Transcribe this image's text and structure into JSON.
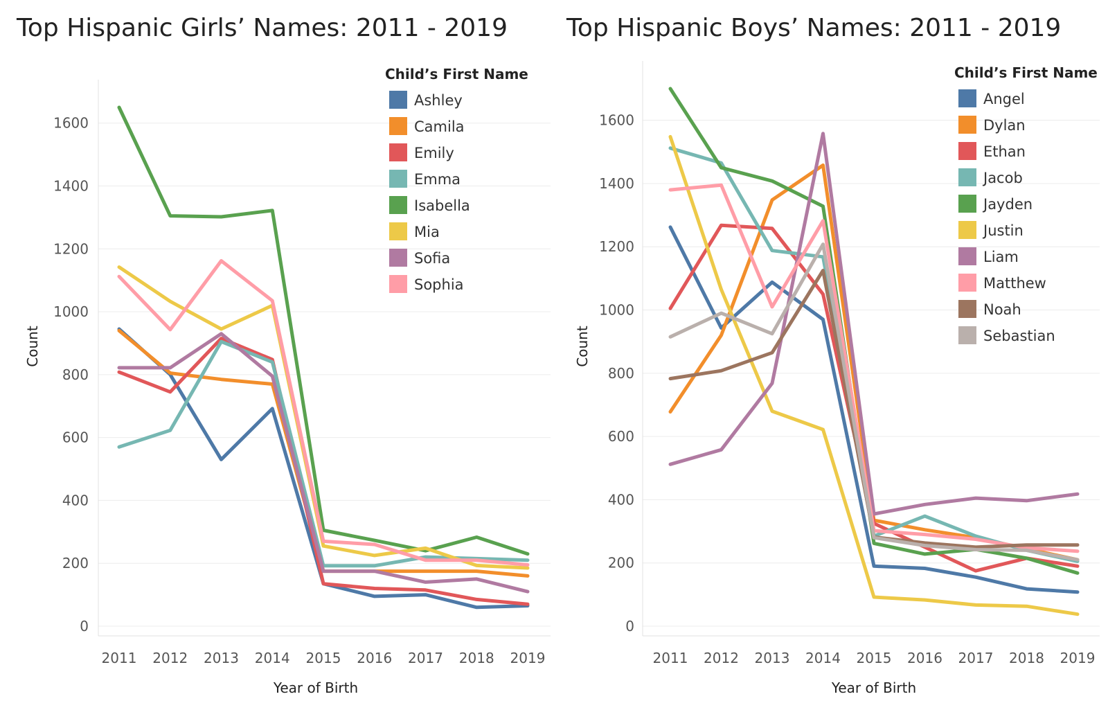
{
  "chart_data": [
    {
      "type": "line",
      "title": "Top Hispanic Girls’ Names: 2011 - 2019",
      "xlabel": "Year of Birth",
      "ylabel": "Count",
      "x": [
        "2011",
        "2012",
        "2013",
        "2014",
        "2015",
        "2016",
        "2017",
        "2018",
        "2019"
      ],
      "yticks": [
        0,
        200,
        400,
        600,
        800,
        1000,
        1200,
        1400,
        1600
      ],
      "ylim": [
        0,
        1650
      ],
      "grid": true,
      "legend_title": "Child’s First Name",
      "legend_position": "top-right",
      "series": [
        {
          "name": "Ashley",
          "color": "#4e79a7",
          "values": [
            945,
            800,
            530,
            692,
            135,
            95,
            100,
            60,
            65
          ]
        },
        {
          "name": "Camila",
          "color": "#f28e2b",
          "values": [
            940,
            805,
            785,
            770,
            175,
            175,
            175,
            175,
            160
          ]
        },
        {
          "name": "Emily",
          "color": "#e15759",
          "values": [
            808,
            745,
            915,
            848,
            135,
            120,
            115,
            85,
            70
          ]
        },
        {
          "name": "Emma",
          "color": "#76b7b2",
          "values": [
            570,
            623,
            905,
            840,
            192,
            192,
            220,
            215,
            210
          ]
        },
        {
          "name": "Isabella",
          "color": "#59a14f",
          "values": [
            1650,
            1305,
            1302,
            1322,
            305,
            273,
            240,
            283,
            230
          ]
        },
        {
          "name": "Mia",
          "color": "#edc948",
          "values": [
            1142,
            1033,
            945,
            1020,
            255,
            225,
            248,
            193,
            185
          ]
        },
        {
          "name": "Sofia",
          "color": "#b07aa1",
          "values": [
            822,
            822,
            930,
            795,
            175,
            175,
            140,
            150,
            110
          ]
        },
        {
          "name": "Sophia",
          "color": "#ff9da7",
          "values": [
            1112,
            943,
            1162,
            1035,
            270,
            260,
            210,
            210,
            195
          ]
        }
      ]
    },
    {
      "type": "line",
      "title": "Top Hispanic Boys’ Names: 2011 - 2019",
      "xlabel": "Year of Birth",
      "ylabel": "Count",
      "x": [
        "2011",
        "2012",
        "2013",
        "2014",
        "2015",
        "2016",
        "2017",
        "2018",
        "2019"
      ],
      "yticks": [
        0,
        200,
        400,
        600,
        800,
        1000,
        1200,
        1400,
        1600
      ],
      "ylim": [
        0,
        1700
      ],
      "grid": true,
      "legend_title": "Child’s First Name",
      "legend_position": "top-right",
      "series": [
        {
          "name": "Angel",
          "color": "#4e79a7",
          "values": [
            1262,
            943,
            1088,
            970,
            190,
            183,
            155,
            118,
            108
          ]
        },
        {
          "name": "Dylan",
          "color": "#f28e2b",
          "values": [
            678,
            920,
            1348,
            1458,
            335,
            305,
            280,
            245,
            210
          ]
        },
        {
          "name": "Ethan",
          "color": "#e15759",
          "values": [
            1005,
            1268,
            1258,
            1050,
            325,
            250,
            175,
            215,
            190
          ]
        },
        {
          "name": "Jacob",
          "color": "#76b7b2",
          "values": [
            1512,
            1465,
            1188,
            1168,
            285,
            348,
            285,
            240,
            205
          ]
        },
        {
          "name": "Jayden",
          "color": "#59a14f",
          "values": [
            1700,
            1450,
            1408,
            1328,
            262,
            228,
            243,
            215,
            168
          ]
        },
        {
          "name": "Justin",
          "color": "#edc948",
          "values": [
            1548,
            1065,
            680,
            622,
            92,
            83,
            67,
            63,
            38
          ]
        },
        {
          "name": "Liam",
          "color": "#b07aa1",
          "values": [
            512,
            558,
            768,
            1558,
            355,
            385,
            405,
            397,
            418
          ]
        },
        {
          "name": "Matthew",
          "color": "#ff9da7",
          "values": [
            1380,
            1395,
            1010,
            1282,
            302,
            290,
            275,
            248,
            237
          ]
        },
        {
          "name": "Noah",
          "color": "#9c755f",
          "values": [
            783,
            808,
            865,
            1125,
            282,
            263,
            250,
            257,
            257
          ]
        },
        {
          "name": "Sebastian",
          "color": "#bab0ac",
          "values": [
            915,
            990,
            925,
            1208,
            280,
            255,
            242,
            240,
            210
          ]
        }
      ]
    }
  ]
}
